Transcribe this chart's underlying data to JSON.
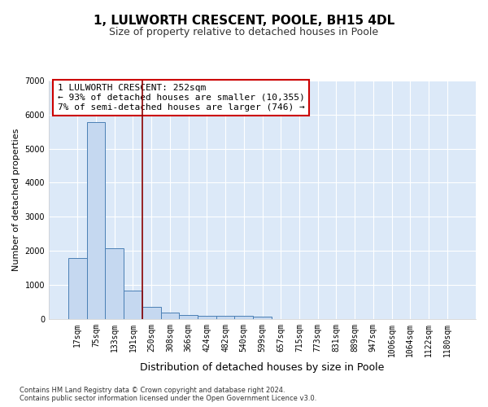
{
  "title": "1, LULWORTH CRESCENT, POOLE, BH15 4DL",
  "subtitle": "Size of property relative to detached houses in Poole",
  "xlabel": "Distribution of detached houses by size in Poole",
  "ylabel": "Number of detached properties",
  "footnote1": "Contains HM Land Registry data © Crown copyright and database right 2024.",
  "footnote2": "Contains public sector information licensed under the Open Government Licence v3.0.",
  "bar_labels": [
    "17sqm",
    "75sqm",
    "133sqm",
    "191sqm",
    "250sqm",
    "308sqm",
    "366sqm",
    "424sqm",
    "482sqm",
    "540sqm",
    "599sqm",
    "657sqm",
    "715sqm",
    "773sqm",
    "831sqm",
    "889sqm",
    "947sqm",
    "1006sqm",
    "1064sqm",
    "1122sqm",
    "1180sqm"
  ],
  "bar_values": [
    1780,
    5780,
    2060,
    820,
    340,
    190,
    120,
    95,
    90,
    75,
    55,
    0,
    0,
    0,
    0,
    0,
    0,
    0,
    0,
    0,
    0
  ],
  "bar_color": "#c5d8f0",
  "bar_edge_color": "#4a7fb5",
  "background_color": "#dce9f8",
  "grid_color": "#f0f4fa",
  "property_line_color": "#8b0000",
  "property_line_x": 3.5,
  "annotation_title": "1 LULWORTH CRESCENT: 252sqm",
  "annotation_line1": "← 93% of detached houses are smaller (10,355)",
  "annotation_line2": "7% of semi-detached houses are larger (746) →",
  "annotation_box_color": "#ffffff",
  "annotation_border_color": "#cc0000",
  "ylim": [
    0,
    7000
  ],
  "yticks": [
    0,
    1000,
    2000,
    3000,
    4000,
    5000,
    6000,
    7000
  ],
  "title_fontsize": 11,
  "subtitle_fontsize": 9,
  "xlabel_fontsize": 9,
  "ylabel_fontsize": 8,
  "tick_fontsize": 7,
  "annotation_fontsize": 8,
  "footnote_fontsize": 6
}
